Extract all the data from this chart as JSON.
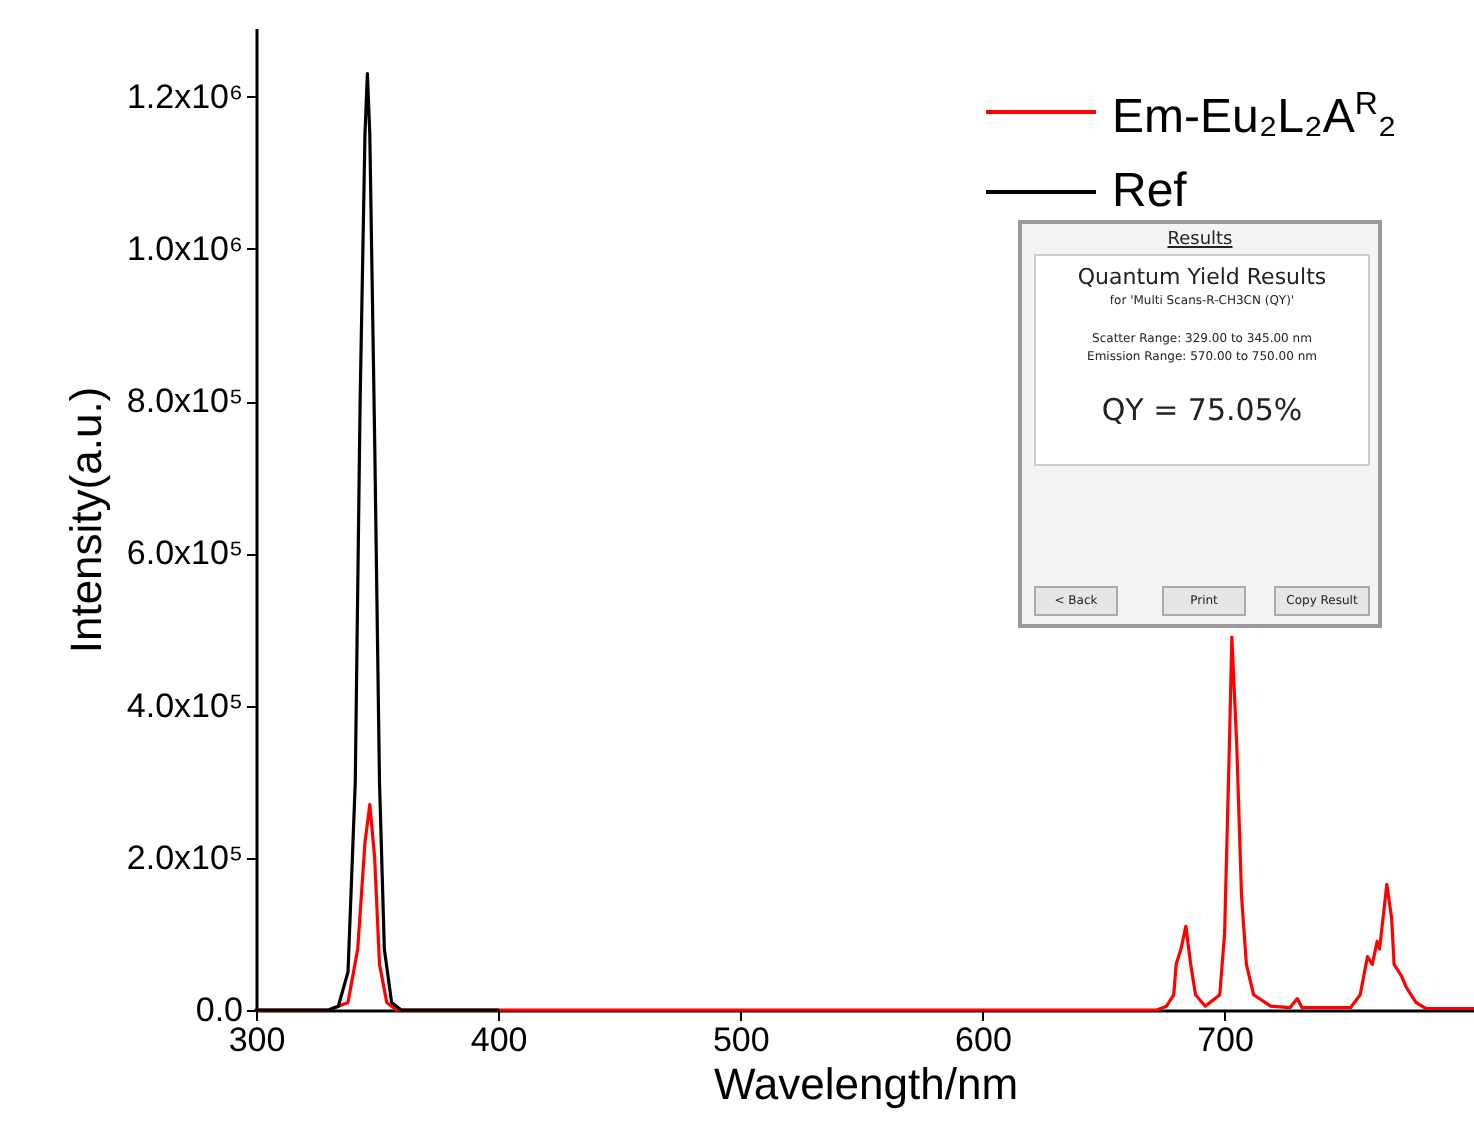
{
  "chart_data": {
    "type": "line",
    "xlabel": "Wavelength/nm",
    "ylabel": "Intensity(a.u.)",
    "xlim": [
      300,
      803
    ],
    "xticks": [
      300,
      400,
      500,
      600,
      700
    ],
    "ylim": [
      0,
      1290000
    ],
    "yticks": [
      {
        "value": 0,
        "label": "0.0"
      },
      {
        "value": 200000,
        "label": "2.0x10⁵"
      },
      {
        "value": 400000,
        "label": "4.0x10⁵"
      },
      {
        "value": 600000,
        "label": "6.0x10⁵"
      },
      {
        "value": 800000,
        "label": "8.0x10⁵"
      },
      {
        "value": 1000000,
        "label": "1.0x10⁶"
      },
      {
        "value": 1200000,
        "label": "1.2x10⁶"
      }
    ],
    "grid": false,
    "legend": "top right",
    "line_style": "solid",
    "marker": "none",
    "series": [
      {
        "name": "Em-Eu₂L₂A$^{R}$₂",
        "color": "#ff0000",
        "x": [
          300,
          330,
          338,
          342,
          345,
          347,
          349,
          351,
          354,
          358,
          672,
          676,
          679,
          680,
          682,
          684,
          686,
          688,
          692,
          698,
          700,
          702,
          703,
          705,
          707,
          709,
          712,
          719,
          727,
          730,
          732,
          752,
          756,
          759,
          761,
          763,
          764,
          767,
          769,
          770,
          773,
          775,
          779,
          783,
          803
        ],
        "values": [
          0,
          0,
          10000,
          80000,
          220000,
          270000,
          200000,
          60000,
          10000,
          0,
          0,
          5000,
          20000,
          60000,
          80000,
          110000,
          60000,
          20000,
          5000,
          20000,
          100000,
          350000,
          490000,
          350000,
          150000,
          60000,
          20000,
          5000,
          3000,
          15000,
          3000,
          3000,
          20000,
          70000,
          60000,
          90000,
          80000,
          165000,
          120000,
          60000,
          45000,
          30000,
          10000,
          2000,
          2000
        ]
      },
      {
        "name": "Ref",
        "color": "#000000",
        "x": [
          300,
          330,
          334,
          338,
          341,
          343,
          345,
          346,
          347,
          349,
          351,
          353,
          356,
          360,
          400
        ],
        "values": [
          0,
          0,
          5000,
          50000,
          300000,
          800000,
          1150000,
          1230000,
          1150000,
          750000,
          300000,
          80000,
          10000,
          0,
          0
        ]
      }
    ],
    "annotations": [
      "Results",
      "Quantum Yield Results",
      "for 'Multi Scans-R-CH3CN (QY)'",
      "Scatter Range: 329.00 to 345.00 nm",
      "Emission Range: 570.00 to 750.00 nm",
      "QY = 75.05%",
      "< Back",
      "Print",
      "Copy Result"
    ]
  }
}
